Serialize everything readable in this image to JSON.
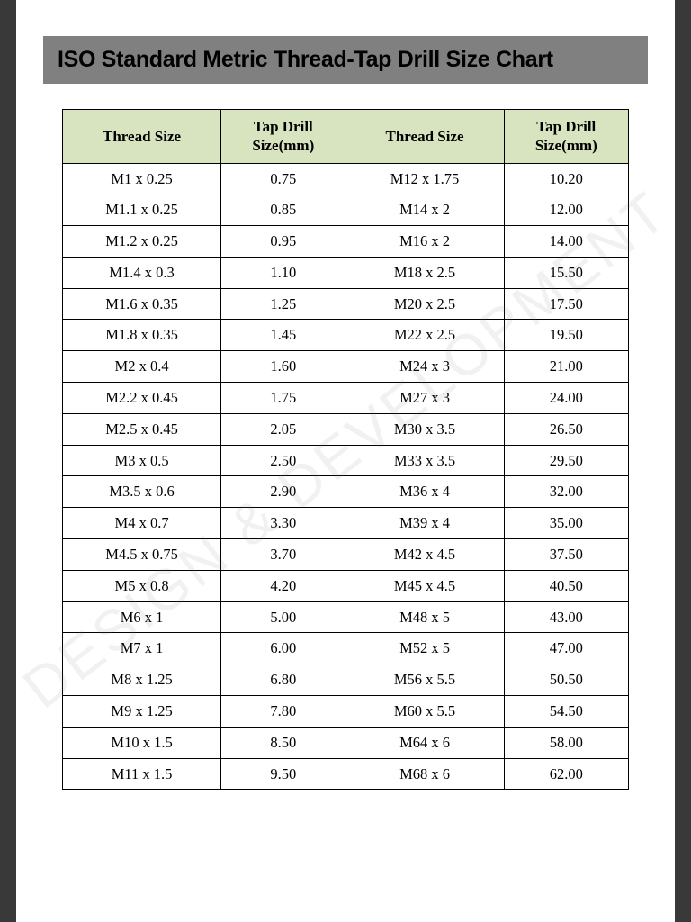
{
  "title": "ISO Standard Metric Thread-Tap Drill Size Chart",
  "watermark": "DESIGN & DEVELOPMENT",
  "table": {
    "columns": [
      "Thread Size",
      "Tap Drill\nSize(mm)",
      "Thread Size",
      "Tap Drill\nSize(mm)"
    ],
    "header_bg": "#d8e3bf",
    "border_color": "#000000",
    "title_bg": "#808080",
    "page_bg": "#ffffff",
    "outer_bg": "#393939",
    "font_family_title": "Arial",
    "font_family_body": "Georgia",
    "header_fontsize": 17,
    "cell_fontsize": 16.5,
    "title_fontsize": 25,
    "rows": [
      [
        "M1 x 0.25",
        "0.75",
        "M12 x 1.75",
        "10.20"
      ],
      [
        "M1.1 x 0.25",
        "0.85",
        "M14 x 2",
        "12.00"
      ],
      [
        "M1.2 x 0.25",
        "0.95",
        "M16 x 2",
        "14.00"
      ],
      [
        "M1.4 x 0.3",
        "1.10",
        "M18 x 2.5",
        "15.50"
      ],
      [
        "M1.6 x 0.35",
        "1.25",
        "M20 x 2.5",
        "17.50"
      ],
      [
        "M1.8 x 0.35",
        "1.45",
        "M22 x 2.5",
        "19.50"
      ],
      [
        "M2 x 0.4",
        "1.60",
        "M24 x 3",
        "21.00"
      ],
      [
        "M2.2 x 0.45",
        "1.75",
        "M27 x 3",
        "24.00"
      ],
      [
        "M2.5 x 0.45",
        "2.05",
        "M30 x 3.5",
        "26.50"
      ],
      [
        "M3 x 0.5",
        "2.50",
        "M33 x 3.5",
        "29.50"
      ],
      [
        "M3.5 x 0.6",
        "2.90",
        "M36 x 4",
        "32.00"
      ],
      [
        "M4 x 0.7",
        "3.30",
        "M39 x 4",
        "35.00"
      ],
      [
        "M4.5 x 0.75",
        "3.70",
        "M42 x 4.5",
        "37.50"
      ],
      [
        "M5 x 0.8",
        "4.20",
        "M45 x 4.5",
        "40.50"
      ],
      [
        "M6 x 1",
        "5.00",
        "M48 x 5",
        "43.00"
      ],
      [
        "M7 x 1",
        "6.00",
        "M52 x 5",
        "47.00"
      ],
      [
        "M8 x 1.25",
        "6.80",
        "M56 x 5.5",
        "50.50"
      ],
      [
        "M9 x 1.25",
        "7.80",
        "M60 x 5.5",
        "54.50"
      ],
      [
        "M10 x 1.5",
        "8.50",
        "M64 x 6",
        "58.00"
      ],
      [
        "M11 x 1.5",
        "9.50",
        "M68 x 6",
        "62.00"
      ]
    ]
  }
}
